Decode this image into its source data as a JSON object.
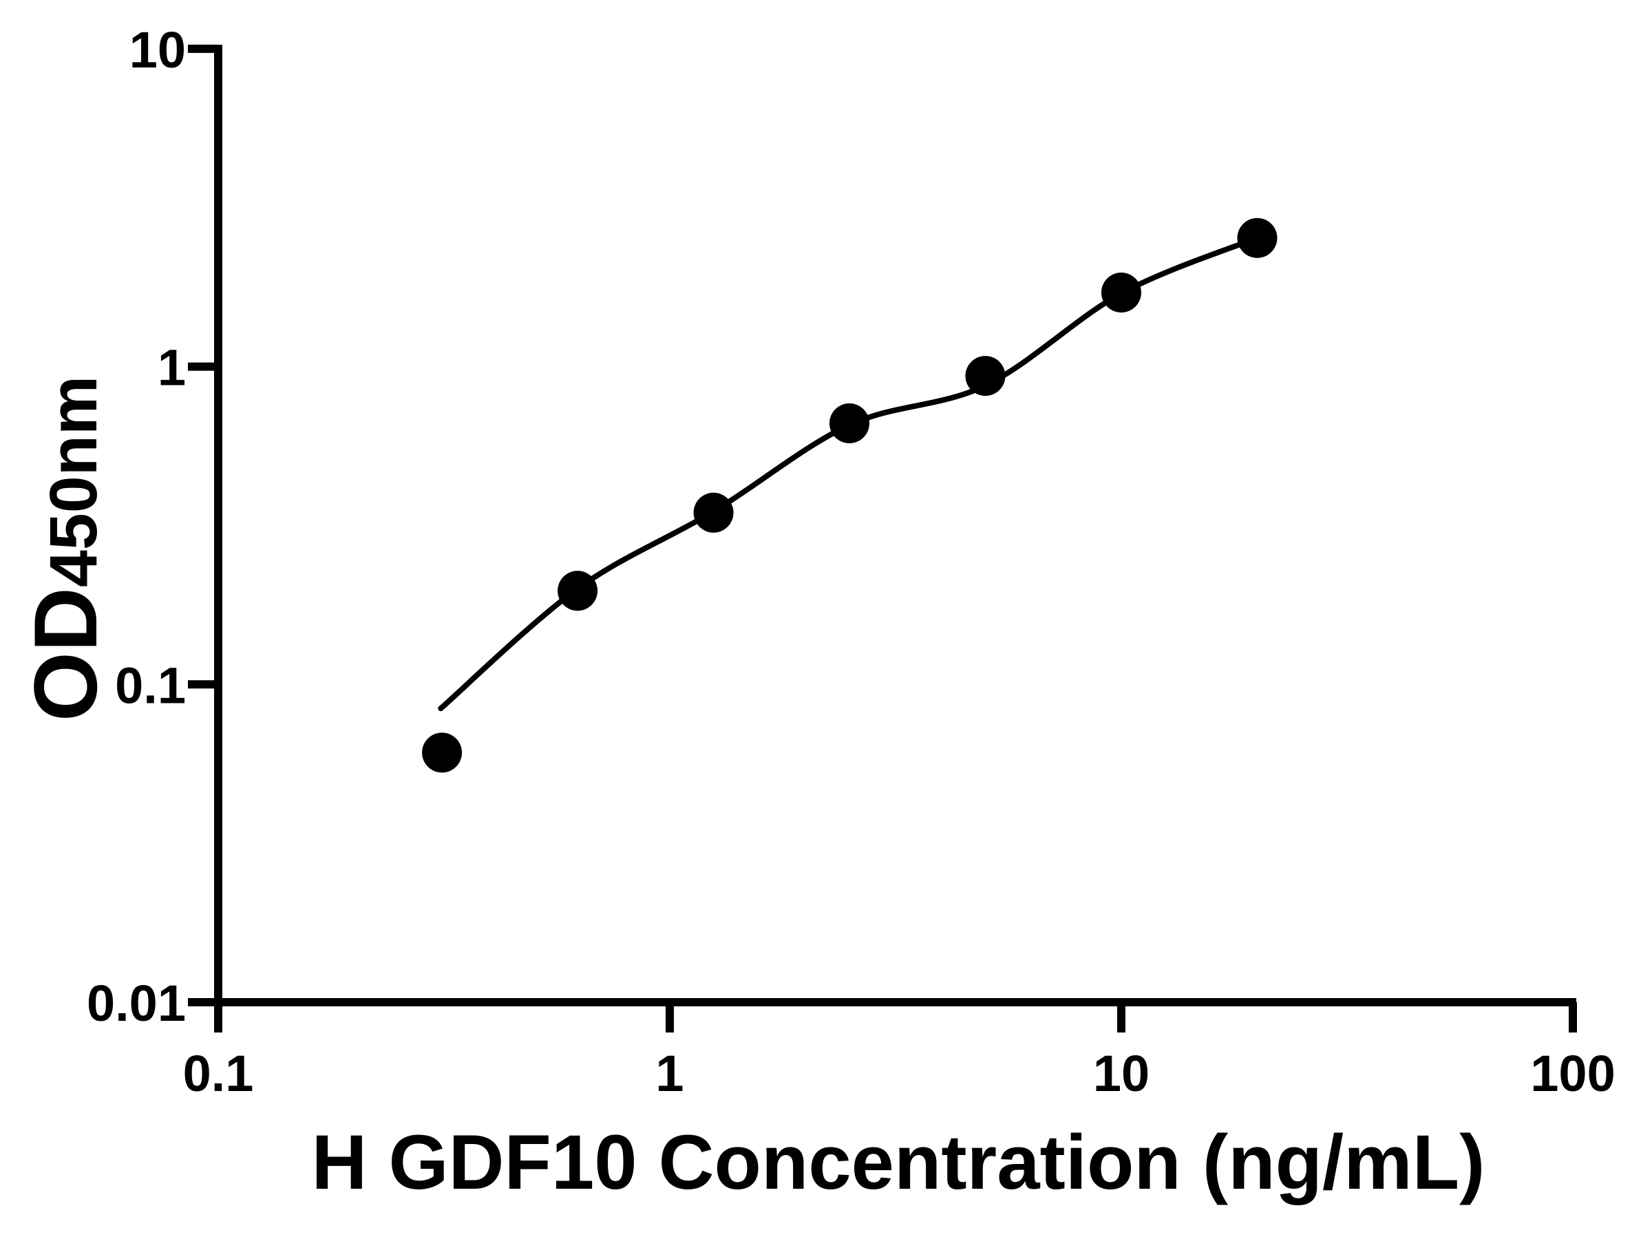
{
  "figure": {
    "background_color": "#ffffff",
    "foreground_color": "#000000"
  },
  "chart_data": {
    "type": "scatter",
    "xlabel": "H GDF10 Concentration (ng/mL)",
    "ylabel": "OD450nm",
    "ylabel_main": "OD",
    "ylabel_sub": "450nm",
    "x_scale": "log10",
    "y_scale": "log10",
    "xlim": [
      0.1,
      100
    ],
    "ylim": [
      0.01,
      10
    ],
    "x_tick_values": [
      0.1,
      1,
      10,
      100
    ],
    "x_tick_labels": [
      "0.1",
      "1",
      "10",
      "100"
    ],
    "y_tick_values": [
      10,
      1,
      0.1,
      0.01
    ],
    "y_tick_labels": [
      "10",
      "1",
      "0.1",
      "0.01"
    ],
    "grid": false,
    "legend": null,
    "marker_shape": "circle",
    "marker_color": "#000000",
    "line_color": "#000000",
    "series": [
      {
        "points": [
          {
            "x": 0.313,
            "y": 0.061
          },
          {
            "x": 0.625,
            "y": 0.197
          },
          {
            "x": 1.25,
            "y": 0.347
          },
          {
            "x": 2.5,
            "y": 0.663
          },
          {
            "x": 5,
            "y": 0.935
          },
          {
            "x": 10,
            "y": 1.71
          },
          {
            "x": 20,
            "y": 2.54
          }
        ]
      }
    ],
    "fit_curve": {
      "points": [
        {
          "x": 0.311,
          "y": 0.084
        },
        {
          "x": 0.625,
          "y": 0.2
        },
        {
          "x": 1.25,
          "y": 0.35
        },
        {
          "x": 2.5,
          "y": 0.655
        },
        {
          "x": 5,
          "y": 0.872
        },
        {
          "x": 10,
          "y": 1.7
        },
        {
          "x": 20,
          "y": 2.54
        }
      ]
    }
  }
}
